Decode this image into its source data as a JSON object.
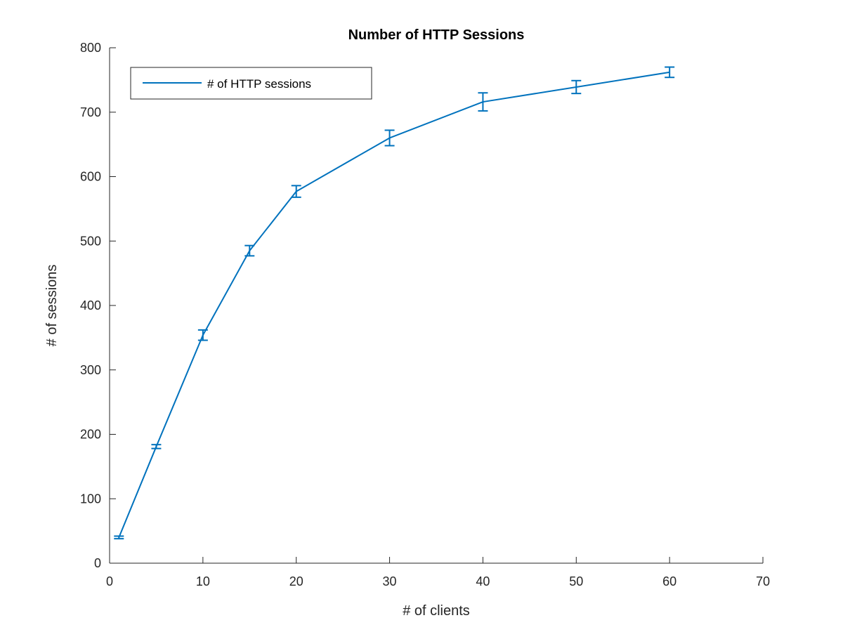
{
  "chart_data": {
    "type": "line",
    "title": "Number of HTTP Sessions",
    "xlabel": "# of clients",
    "ylabel": "# of sessions",
    "xlim": [
      0,
      70
    ],
    "ylim": [
      0,
      800
    ],
    "xticks": [
      0,
      10,
      20,
      30,
      40,
      50,
      60,
      70
    ],
    "yticks": [
      0,
      100,
      200,
      300,
      400,
      500,
      600,
      700,
      800
    ],
    "grid": false,
    "legend_position": "top-left",
    "line_color": "#0072BD",
    "series": [
      {
        "name": "# of HTTP sessions",
        "x": [
          1,
          5,
          10,
          15,
          20,
          30,
          40,
          50,
          60
        ],
        "y": [
          40,
          181,
          354,
          485,
          577,
          660,
          716,
          739,
          762
        ],
        "error": [
          2,
          3,
          8,
          8,
          9,
          12,
          14,
          10,
          8
        ]
      }
    ]
  }
}
